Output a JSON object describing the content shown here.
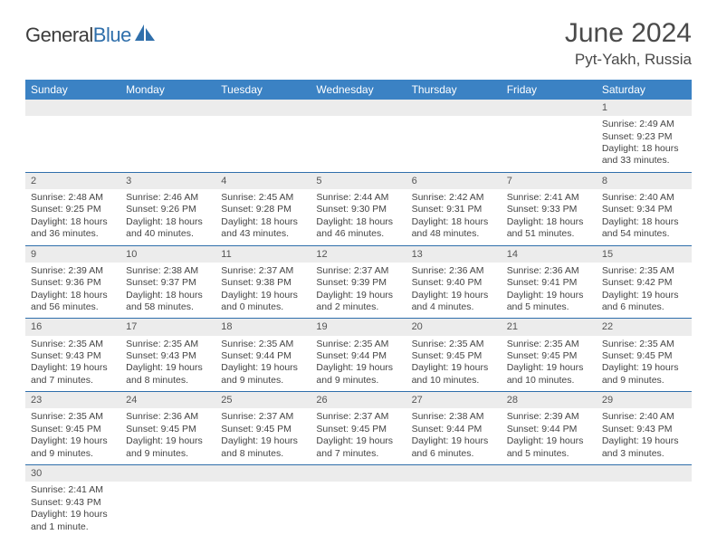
{
  "logo": {
    "general": "General",
    "blue": "Blue"
  },
  "title": "June 2024",
  "location": "Pyt-Yakh, Russia",
  "colors": {
    "header_bg": "#3b82c4",
    "header_text": "#ffffff",
    "daynum_bg": "#ececec",
    "cell_border": "#2f6fab",
    "body_text": "#444444",
    "title_text": "#4a4a4a",
    "logo_general": "#3c3c3c",
    "logo_blue": "#2f6fab"
  },
  "typography": {
    "title_fontsize": 30,
    "location_fontsize": 17,
    "dayheader_fontsize": 12,
    "daynum_fontsize": 11,
    "cell_fontsize": 10.5
  },
  "day_headers": [
    "Sunday",
    "Monday",
    "Tuesday",
    "Wednesday",
    "Thursday",
    "Friday",
    "Saturday"
  ],
  "weeks": [
    {
      "nums": [
        "",
        "",
        "",
        "",
        "",
        "",
        "1"
      ],
      "cells": [
        null,
        null,
        null,
        null,
        null,
        null,
        {
          "sunrise": "Sunrise: 2:49 AM",
          "sunset": "Sunset: 9:23 PM",
          "daylight": "Daylight: 18 hours and 33 minutes."
        }
      ]
    },
    {
      "nums": [
        "2",
        "3",
        "4",
        "5",
        "6",
        "7",
        "8"
      ],
      "cells": [
        {
          "sunrise": "Sunrise: 2:48 AM",
          "sunset": "Sunset: 9:25 PM",
          "daylight": "Daylight: 18 hours and 36 minutes."
        },
        {
          "sunrise": "Sunrise: 2:46 AM",
          "sunset": "Sunset: 9:26 PM",
          "daylight": "Daylight: 18 hours and 40 minutes."
        },
        {
          "sunrise": "Sunrise: 2:45 AM",
          "sunset": "Sunset: 9:28 PM",
          "daylight": "Daylight: 18 hours and 43 minutes."
        },
        {
          "sunrise": "Sunrise: 2:44 AM",
          "sunset": "Sunset: 9:30 PM",
          "daylight": "Daylight: 18 hours and 46 minutes."
        },
        {
          "sunrise": "Sunrise: 2:42 AM",
          "sunset": "Sunset: 9:31 PM",
          "daylight": "Daylight: 18 hours and 48 minutes."
        },
        {
          "sunrise": "Sunrise: 2:41 AM",
          "sunset": "Sunset: 9:33 PM",
          "daylight": "Daylight: 18 hours and 51 minutes."
        },
        {
          "sunrise": "Sunrise: 2:40 AM",
          "sunset": "Sunset: 9:34 PM",
          "daylight": "Daylight: 18 hours and 54 minutes."
        }
      ]
    },
    {
      "nums": [
        "9",
        "10",
        "11",
        "12",
        "13",
        "14",
        "15"
      ],
      "cells": [
        {
          "sunrise": "Sunrise: 2:39 AM",
          "sunset": "Sunset: 9:36 PM",
          "daylight": "Daylight: 18 hours and 56 minutes."
        },
        {
          "sunrise": "Sunrise: 2:38 AM",
          "sunset": "Sunset: 9:37 PM",
          "daylight": "Daylight: 18 hours and 58 minutes."
        },
        {
          "sunrise": "Sunrise: 2:37 AM",
          "sunset": "Sunset: 9:38 PM",
          "daylight": "Daylight: 19 hours and 0 minutes."
        },
        {
          "sunrise": "Sunrise: 2:37 AM",
          "sunset": "Sunset: 9:39 PM",
          "daylight": "Daylight: 19 hours and 2 minutes."
        },
        {
          "sunrise": "Sunrise: 2:36 AM",
          "sunset": "Sunset: 9:40 PM",
          "daylight": "Daylight: 19 hours and 4 minutes."
        },
        {
          "sunrise": "Sunrise: 2:36 AM",
          "sunset": "Sunset: 9:41 PM",
          "daylight": "Daylight: 19 hours and 5 minutes."
        },
        {
          "sunrise": "Sunrise: 2:35 AM",
          "sunset": "Sunset: 9:42 PM",
          "daylight": "Daylight: 19 hours and 6 minutes."
        }
      ]
    },
    {
      "nums": [
        "16",
        "17",
        "18",
        "19",
        "20",
        "21",
        "22"
      ],
      "cells": [
        {
          "sunrise": "Sunrise: 2:35 AM",
          "sunset": "Sunset: 9:43 PM",
          "daylight": "Daylight: 19 hours and 7 minutes."
        },
        {
          "sunrise": "Sunrise: 2:35 AM",
          "sunset": "Sunset: 9:43 PM",
          "daylight": "Daylight: 19 hours and 8 minutes."
        },
        {
          "sunrise": "Sunrise: 2:35 AM",
          "sunset": "Sunset: 9:44 PM",
          "daylight": "Daylight: 19 hours and 9 minutes."
        },
        {
          "sunrise": "Sunrise: 2:35 AM",
          "sunset": "Sunset: 9:44 PM",
          "daylight": "Daylight: 19 hours and 9 minutes."
        },
        {
          "sunrise": "Sunrise: 2:35 AM",
          "sunset": "Sunset: 9:45 PM",
          "daylight": "Daylight: 19 hours and 10 minutes."
        },
        {
          "sunrise": "Sunrise: 2:35 AM",
          "sunset": "Sunset: 9:45 PM",
          "daylight": "Daylight: 19 hours and 10 minutes."
        },
        {
          "sunrise": "Sunrise: 2:35 AM",
          "sunset": "Sunset: 9:45 PM",
          "daylight": "Daylight: 19 hours and 9 minutes."
        }
      ]
    },
    {
      "nums": [
        "23",
        "24",
        "25",
        "26",
        "27",
        "28",
        "29"
      ],
      "cells": [
        {
          "sunrise": "Sunrise: 2:35 AM",
          "sunset": "Sunset: 9:45 PM",
          "daylight": "Daylight: 19 hours and 9 minutes."
        },
        {
          "sunrise": "Sunrise: 2:36 AM",
          "sunset": "Sunset: 9:45 PM",
          "daylight": "Daylight: 19 hours and 9 minutes."
        },
        {
          "sunrise": "Sunrise: 2:37 AM",
          "sunset": "Sunset: 9:45 PM",
          "daylight": "Daylight: 19 hours and 8 minutes."
        },
        {
          "sunrise": "Sunrise: 2:37 AM",
          "sunset": "Sunset: 9:45 PM",
          "daylight": "Daylight: 19 hours and 7 minutes."
        },
        {
          "sunrise": "Sunrise: 2:38 AM",
          "sunset": "Sunset: 9:44 PM",
          "daylight": "Daylight: 19 hours and 6 minutes."
        },
        {
          "sunrise": "Sunrise: 2:39 AM",
          "sunset": "Sunset: 9:44 PM",
          "daylight": "Daylight: 19 hours and 5 minutes."
        },
        {
          "sunrise": "Sunrise: 2:40 AM",
          "sunset": "Sunset: 9:43 PM",
          "daylight": "Daylight: 19 hours and 3 minutes."
        }
      ]
    },
    {
      "nums": [
        "30",
        "",
        "",
        "",
        "",
        "",
        ""
      ],
      "cells": [
        {
          "sunrise": "Sunrise: 2:41 AM",
          "sunset": "Sunset: 9:43 PM",
          "daylight": "Daylight: 19 hours and 1 minute."
        },
        null,
        null,
        null,
        null,
        null,
        null
      ]
    }
  ]
}
